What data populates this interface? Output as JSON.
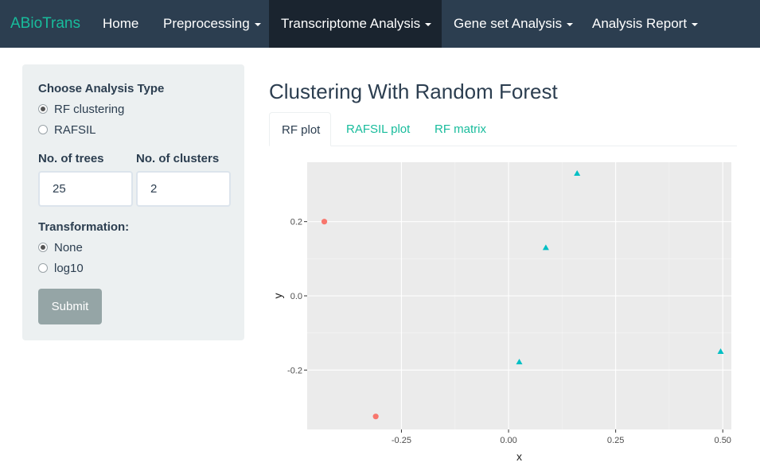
{
  "navbar": {
    "brand": "ABioTrans",
    "items": [
      {
        "label": "Home",
        "dropdown": false,
        "active": false
      },
      {
        "label": "Preprocessing",
        "dropdown": true,
        "active": false
      },
      {
        "label": "Transcriptome Analysis",
        "dropdown": true,
        "active": true
      },
      {
        "label": "Gene set Analysis",
        "dropdown": true,
        "active": false
      },
      {
        "label": "Analysis Report",
        "dropdown": true,
        "active": false
      }
    ]
  },
  "sidebar": {
    "analysis_type_label": "Choose Analysis Type",
    "analysis_types": [
      {
        "label": "RF clustering",
        "checked": true
      },
      {
        "label": "RAFSIL",
        "checked": false
      }
    ],
    "trees_label": "No. of trees",
    "trees_value": "25",
    "clusters_label": "No. of clusters",
    "clusters_value": "2",
    "transformation_label": "Transformation:",
    "transformations": [
      {
        "label": "None",
        "checked": true
      },
      {
        "label": "log10",
        "checked": false
      }
    ],
    "submit_label": "Submit"
  },
  "main": {
    "title": "Clustering With Random Forest",
    "tabs": [
      {
        "label": "RF plot",
        "active": true
      },
      {
        "label": "RAFSIL plot",
        "active": false
      },
      {
        "label": "RF matrix",
        "active": false
      }
    ]
  },
  "colors": {
    "navbar": "#2c3e50",
    "accent": "#18bc9c",
    "panel_bg": "#ggrey"
  },
  "chart_data": {
    "type": "scatter",
    "xlabel": "x",
    "ylabel": "y",
    "xlim": [
      -0.47,
      0.52
    ],
    "ylim": [
      -0.36,
      0.36
    ],
    "x_ticks": [
      -0.25,
      0.0,
      0.25,
      0.5
    ],
    "x_tick_labels": [
      "-0.25",
      "0.00",
      "0.25",
      "0.50"
    ],
    "y_ticks": [
      -0.2,
      0.0,
      0.2
    ],
    "y_tick_labels": [
      "-0.2",
      "0.0",
      "0.2"
    ],
    "grid": true,
    "legend": "none",
    "series": [
      {
        "shape": "circle",
        "color": "#f8766d",
        "points": [
          {
            "x": -0.43,
            "y": 0.2
          },
          {
            "x": -0.31,
            "y": -0.325
          }
        ]
      },
      {
        "shape": "triangle",
        "color": "#00bfc4",
        "points": [
          {
            "x": 0.16,
            "y": 0.33
          },
          {
            "x": 0.087,
            "y": 0.13
          },
          {
            "x": 0.025,
            "y": -0.178
          },
          {
            "x": 0.495,
            "y": -0.15
          }
        ]
      }
    ]
  }
}
